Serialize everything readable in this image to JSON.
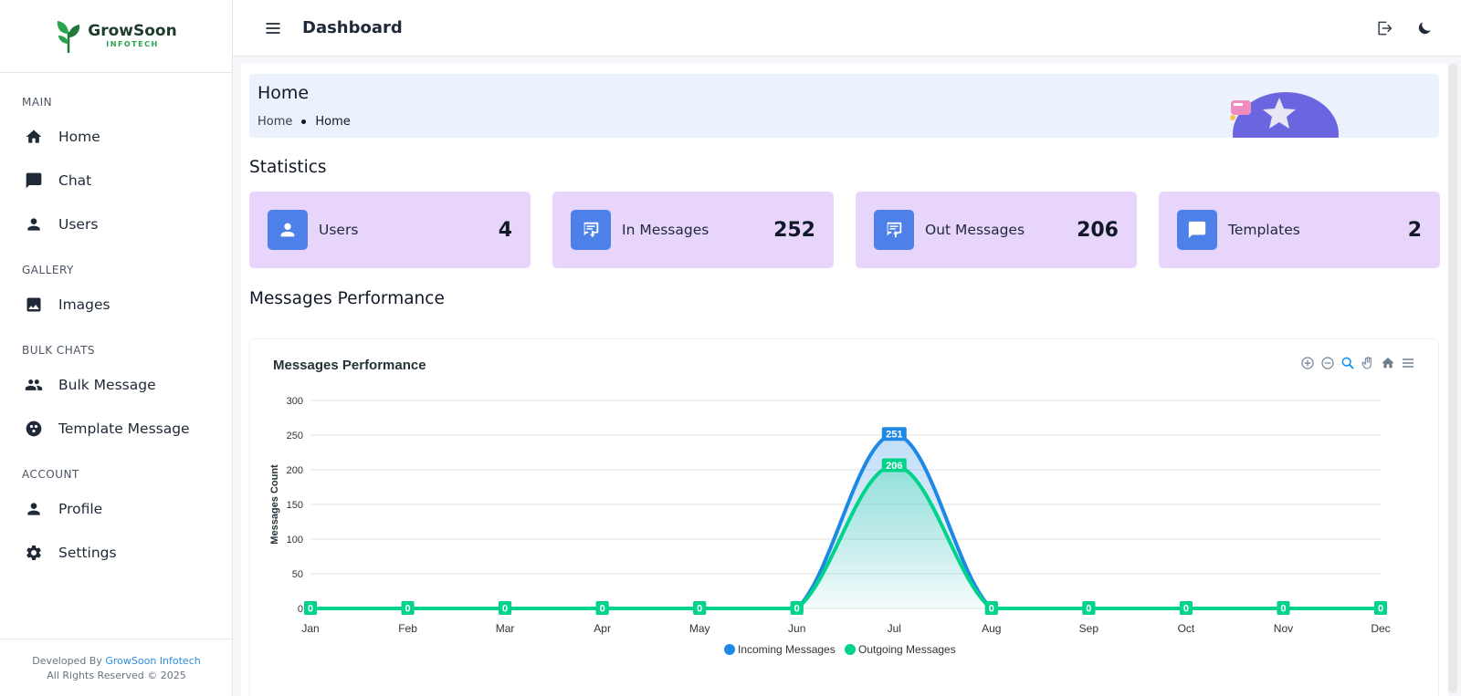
{
  "sidebar": {
    "logo": {
      "name": "GrowSoon",
      "sub": "INFOTECH"
    },
    "sections": [
      {
        "title": "MAIN",
        "items": [
          {
            "label": "Home",
            "icon": "home-icon"
          },
          {
            "label": "Chat",
            "icon": "chat-icon"
          },
          {
            "label": "Users",
            "icon": "user-icon"
          }
        ]
      },
      {
        "title": "GALLERY",
        "items": [
          {
            "label": "Images",
            "icon": "image-icon"
          }
        ]
      },
      {
        "title": "BULK CHATS",
        "items": [
          {
            "label": "Bulk Message",
            "icon": "group-icon"
          },
          {
            "label": "Template Message",
            "icon": "template-icon"
          }
        ]
      },
      {
        "title": "ACCOUNT",
        "items": [
          {
            "label": "Profile",
            "icon": "user-icon"
          },
          {
            "label": "Settings",
            "icon": "gear-icon"
          }
        ]
      }
    ],
    "footer": {
      "prefix": "Developed By",
      "brand": "GrowSoon Infotech",
      "rights": "All Rights Reserved © 2025"
    }
  },
  "topbar": {
    "title": "Dashboard"
  },
  "page": {
    "hero_title": "Home",
    "breadcrumb": [
      "Home",
      "Home"
    ],
    "statistics_title": "Statistics",
    "performance_title": "Messages Performance"
  },
  "stats": [
    {
      "label": "Users",
      "value": "4",
      "icon": "user-icon"
    },
    {
      "label": "In Messages",
      "value": "252",
      "icon": "incoming-message-icon"
    },
    {
      "label": "Out Messages",
      "value": "206",
      "icon": "outgoing-message-icon"
    },
    {
      "label": "Templates",
      "value": "2",
      "icon": "chat-bubble-icon"
    }
  ],
  "colors": {
    "accent": "#4d80e8",
    "card_bg": "#e8d5fb",
    "incoming": "#1e88e5",
    "outgoing": "#00d48a"
  },
  "chart_data": {
    "type": "area",
    "title": "Messages Performance",
    "xlabel": "",
    "ylabel": "Messages Count",
    "categories": [
      "Jan",
      "Feb",
      "Mar",
      "Apr",
      "May",
      "Jun",
      "Jul",
      "Aug",
      "Sep",
      "Oct",
      "Nov",
      "Dec"
    ],
    "ylim": [
      0,
      300
    ],
    "yticks": [
      0,
      50,
      100,
      150,
      200,
      250,
      300
    ],
    "grid": true,
    "legend_position": "bottom",
    "series": [
      {
        "name": "Incoming Messages",
        "color": "#1e88e5",
        "values": [
          0,
          0,
          0,
          0,
          0,
          0,
          251,
          0,
          0,
          0,
          0,
          0
        ]
      },
      {
        "name": "Outgoing Messages",
        "color": "#00d48a",
        "values": [
          0,
          0,
          0,
          0,
          0,
          0,
          206,
          0,
          0,
          0,
          0,
          0
        ]
      }
    ]
  }
}
